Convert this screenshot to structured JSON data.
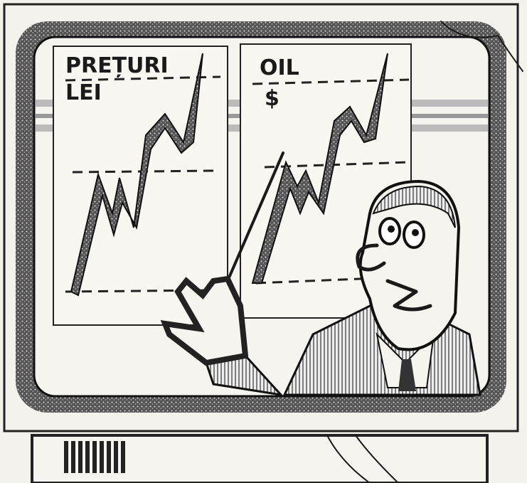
{
  "screen": {
    "panels": [
      {
        "title": "PREȚURI",
        "unit": "LEI"
      },
      {
        "title": "OIL",
        "unit": "$"
      }
    ]
  }
}
